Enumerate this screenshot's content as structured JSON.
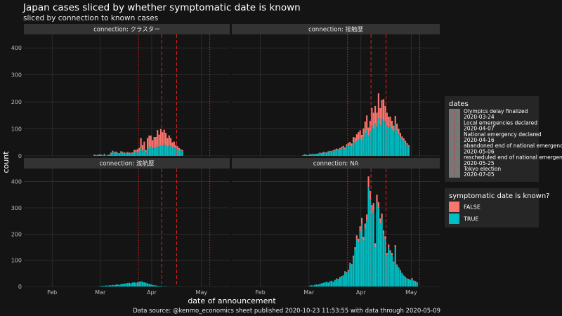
{
  "title": "Japan cases sliced by whether symptomatic date is known",
  "subtitle": "sliced by connection to known cases",
  "xlabel": "date of announcement",
  "ylabel": "count",
  "caption": "Data source: @kenmo_economics sheet published 2020-10-23 11:53:55 with data through 2020-05-09",
  "colors": {
    "false": "#f8766d",
    "true": "#00bfc4",
    "background": "#141414",
    "panel": "#141414",
    "strip": "#333333",
    "grid": "#3a3a3a",
    "event_line": "#ff2020"
  },
  "chart_data": {
    "type": "bar",
    "stacked": true,
    "facets": [
      "connection: クラスター",
      "connection: 接触歴",
      "connection: 渡航歴",
      "connection: NA"
    ],
    "x_ticks": [
      {
        "label": "Feb",
        "date": "2020-02-01"
      },
      {
        "label": "Mar",
        "date": "2020-03-01"
      },
      {
        "label": "Apr",
        "date": "2020-04-01"
      },
      {
        "label": "May",
        "date": "2020-05-01"
      }
    ],
    "x_range": [
      "2020-01-15",
      "2020-05-18"
    ],
    "y_range": [
      0,
      450
    ],
    "y_ticks": [
      0,
      100,
      200,
      300,
      400
    ],
    "series": [
      {
        "name": "FALSE"
      },
      {
        "name": "TRUE"
      }
    ],
    "legend_title": "symptomatic date is known?",
    "dates_legend": {
      "title": "dates",
      "events": [
        {
          "name": "Olympics delay finalized",
          "date": "2020-03-24",
          "line": "dotted"
        },
        {
          "name": "Local emergencies declared",
          "date": "2020-04-07",
          "line": "dashed"
        },
        {
          "name": "National emergency declared",
          "date": "2020-04-16",
          "line": "dashed"
        },
        {
          "name": "abandoned end of national emergency",
          "date": "2020-05-06",
          "line": "dotted"
        },
        {
          "name": "rescheduled end of national emergency",
          "date": "2020-05-25",
          "line": "dotted"
        },
        {
          "name": "Tokyo election",
          "date": "2020-07-05",
          "line": "dotted"
        }
      ]
    },
    "panels": [
      {
        "facet": "connection: クラスター",
        "start_date": "2020-02-26",
        "true": [
          4,
          2,
          3,
          5,
          4,
          2,
          6,
          1,
          3,
          4,
          9,
          15,
          11,
          13,
          10,
          8,
          13,
          12,
          9,
          10,
          11,
          8,
          9,
          10,
          15,
          14,
          15,
          16,
          28,
          20,
          25,
          12,
          26,
          30,
          35,
          28,
          30,
          32,
          36,
          34,
          40,
          38,
          42,
          40,
          34,
          38,
          36,
          30,
          33,
          28,
          26,
          22,
          20,
          18
        ],
        "false": [
          1,
          1,
          1,
          1,
          1,
          0,
          2,
          0,
          1,
          1,
          3,
          4,
          3,
          3,
          2,
          2,
          4,
          3,
          3,
          2,
          3,
          4,
          3,
          3,
          7,
          8,
          10,
          14,
          38,
          20,
          28,
          10,
          40,
          45,
          40,
          30,
          40,
          38,
          60,
          45,
          60,
          50,
          55,
          45,
          32,
          38,
          30,
          20,
          20,
          12,
          10,
          7,
          5,
          4
        ]
      },
      {
        "facet": "connection: 接触歴",
        "start_date": "2020-02-26",
        "true": [
          3,
          5,
          4,
          3,
          6,
          5,
          7,
          6,
          7,
          8,
          10,
          9,
          13,
          12,
          11,
          14,
          16,
          15,
          18,
          20,
          22,
          20,
          24,
          28,
          30,
          26,
          35,
          38,
          40,
          36,
          52,
          48,
          55,
          60,
          65,
          58,
          70,
          85,
          95,
          75,
          90,
          110,
          100,
          120,
          108,
          140,
          115,
          138,
          130,
          130,
          112,
          105,
          110,
          100,
          90,
          120,
          95,
          80,
          70,
          60,
          55,
          48,
          40,
          35
        ],
        "false": [
          0,
          1,
          0,
          0,
          1,
          1,
          1,
          1,
          1,
          1,
          2,
          2,
          2,
          2,
          2,
          3,
          3,
          3,
          3,
          4,
          5,
          5,
          5,
          6,
          7,
          5,
          8,
          10,
          12,
          10,
          18,
          20,
          25,
          28,
          30,
          20,
          32,
          42,
          55,
          30,
          40,
          68,
          60,
          65,
          52,
          92,
          62,
          70,
          80,
          55,
          48,
          40,
          35,
          30,
          22,
          28,
          24,
          20,
          15,
          12,
          10,
          8,
          7,
          5
        ]
      },
      {
        "facet": "connection: 渡航歴",
        "start_date": "2020-03-01",
        "true": [
          2,
          3,
          2,
          4,
          3,
          5,
          4,
          6,
          5,
          7,
          8,
          6,
          9,
          10,
          11,
          12,
          13,
          14,
          12,
          15,
          16,
          14,
          17,
          18,
          20,
          18,
          16,
          14,
          12,
          10,
          8,
          6,
          5,
          4,
          3,
          2,
          2,
          1,
          1,
          1,
          0,
          0,
          0,
          0
        ],
        "false": [
          0,
          0,
          0,
          0,
          0,
          0,
          0,
          0,
          0,
          0,
          0,
          0,
          0,
          0,
          0,
          0,
          0,
          0,
          0,
          0,
          0,
          0,
          0,
          0,
          0,
          0,
          0,
          0,
          0,
          0,
          0,
          0,
          0,
          0,
          0,
          0,
          0,
          0,
          0,
          0,
          0,
          0,
          0,
          0
        ]
      },
      {
        "facet": "connection: NA",
        "start_date": "2020-03-01",
        "true": [
          3,
          5,
          4,
          6,
          8,
          7,
          10,
          12,
          14,
          16,
          18,
          15,
          20,
          22,
          18,
          25,
          30,
          28,
          35,
          38,
          40,
          55,
          52,
          60,
          85,
          80,
          110,
          140,
          180,
          170,
          210,
          240,
          175,
          220,
          250,
          380,
          330,
          280,
          290,
          150,
          320,
          300,
          240,
          260,
          200,
          180,
          120,
          150,
          130,
          120,
          90,
          150,
          80,
          70,
          60,
          50,
          40,
          35,
          30,
          28,
          25,
          30,
          22,
          20,
          15
        ],
        "false": [
          0,
          0,
          0,
          0,
          0,
          0,
          0,
          0,
          0,
          0,
          0,
          0,
          0,
          0,
          0,
          0,
          1,
          1,
          1,
          2,
          2,
          3,
          3,
          4,
          5,
          5,
          8,
          10,
          15,
          12,
          20,
          22,
          15,
          20,
          25,
          40,
          35,
          30,
          28,
          15,
          30,
          22,
          20,
          18,
          14,
          12,
          8,
          10,
          8,
          8,
          5,
          8,
          4,
          3,
          3,
          2,
          2,
          2,
          1,
          1,
          1,
          2,
          1,
          1,
          1
        ]
      }
    ]
  }
}
